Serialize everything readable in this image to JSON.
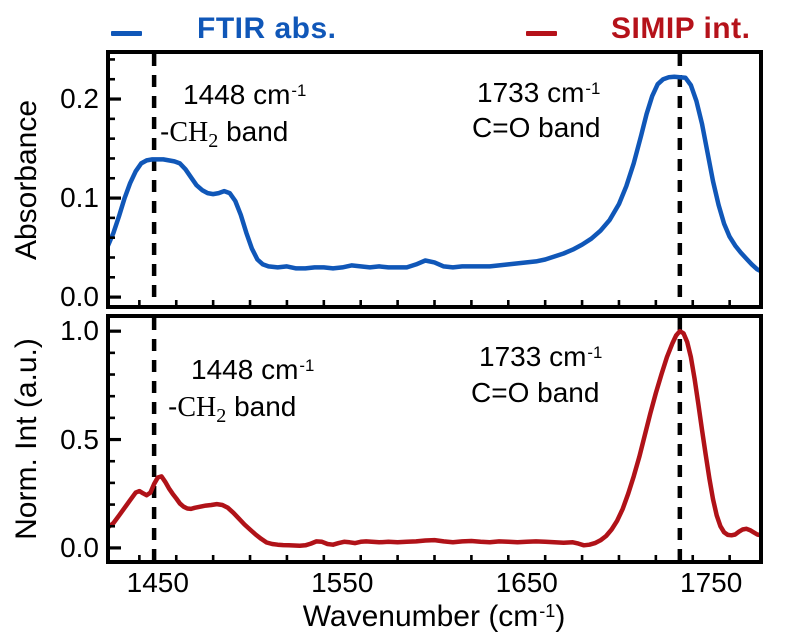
{
  "chart_data": {
    "type": "line",
    "title": "",
    "xlabel_parts": {
      "pre": "Wavenumber (cm",
      "sup": "-1",
      "post": ")"
    },
    "xlim": [
      1423,
      1777
    ],
    "x_major_ticks": [
      1450,
      1550,
      1650,
      1750
    ],
    "x_tick_labels": [
      "1450",
      "1550",
      "1650",
      "1750"
    ],
    "x_minor_step": 20,
    "vlines": [
      1448,
      1733
    ],
    "grid": false,
    "legend_position": "top",
    "panels": [
      {
        "series_name": "FTIR abs.",
        "ylabel": "Absorbance",
        "color": "#1057B8",
        "ylim": [
          -0.01,
          0.2475
        ],
        "y_major_ticks": [
          0,
          0.1,
          0.2
        ],
        "y_tick_labels": [
          "0.0",
          "0.1",
          "0.2"
        ],
        "y_minor_step": 0.02,
        "points": [
          [
            1423,
            0.052
          ],
          [
            1426,
            0.065
          ],
          [
            1429,
            0.082
          ],
          [
            1432,
            0.1
          ],
          [
            1435,
            0.115
          ],
          [
            1438,
            0.127
          ],
          [
            1441,
            0.135
          ],
          [
            1444,
            0.138
          ],
          [
            1447,
            0.139
          ],
          [
            1450,
            0.139
          ],
          [
            1453,
            0.139
          ],
          [
            1456,
            0.138
          ],
          [
            1459,
            0.137
          ],
          [
            1462,
            0.135
          ],
          [
            1465,
            0.129
          ],
          [
            1468,
            0.121
          ],
          [
            1471,
            0.113
          ],
          [
            1474,
            0.108
          ],
          [
            1477,
            0.105
          ],
          [
            1480,
            0.104
          ],
          [
            1483,
            0.105
          ],
          [
            1486,
            0.107
          ],
          [
            1489,
            0.105
          ],
          [
            1492,
            0.097
          ],
          [
            1495,
            0.083
          ],
          [
            1498,
            0.065
          ],
          [
            1501,
            0.049
          ],
          [
            1504,
            0.038
          ],
          [
            1507,
            0.033
          ],
          [
            1510,
            0.031
          ],
          [
            1515,
            0.03
          ],
          [
            1520,
            0.031
          ],
          [
            1525,
            0.029
          ],
          [
            1530,
            0.029
          ],
          [
            1535,
            0.03
          ],
          [
            1540,
            0.03
          ],
          [
            1545,
            0.029
          ],
          [
            1550,
            0.03
          ],
          [
            1555,
            0.032
          ],
          [
            1560,
            0.031
          ],
          [
            1565,
            0.03
          ],
          [
            1570,
            0.031
          ],
          [
            1575,
            0.03
          ],
          [
            1580,
            0.03
          ],
          [
            1585,
            0.03
          ],
          [
            1590,
            0.033
          ],
          [
            1595,
            0.037
          ],
          [
            1600,
            0.035
          ],
          [
            1605,
            0.031
          ],
          [
            1610,
            0.03
          ],
          [
            1615,
            0.031
          ],
          [
            1620,
            0.031
          ],
          [
            1625,
            0.031
          ],
          [
            1630,
            0.031
          ],
          [
            1635,
            0.032
          ],
          [
            1640,
            0.033
          ],
          [
            1645,
            0.034
          ],
          [
            1650,
            0.035
          ],
          [
            1655,
            0.036
          ],
          [
            1660,
            0.038
          ],
          [
            1665,
            0.041
          ],
          [
            1670,
            0.044
          ],
          [
            1675,
            0.048
          ],
          [
            1680,
            0.053
          ],
          [
            1685,
            0.059
          ],
          [
            1690,
            0.067
          ],
          [
            1695,
            0.078
          ],
          [
            1700,
            0.094
          ],
          [
            1704,
            0.112
          ],
          [
            1708,
            0.135
          ],
          [
            1712,
            0.163
          ],
          [
            1715,
            0.185
          ],
          [
            1718,
            0.203
          ],
          [
            1721,
            0.215
          ],
          [
            1724,
            0.22
          ],
          [
            1727,
            0.222
          ],
          [
            1730,
            0.2225
          ],
          [
            1733,
            0.222
          ],
          [
            1736,
            0.2215
          ],
          [
            1739,
            0.214
          ],
          [
            1742,
            0.198
          ],
          [
            1745,
            0.175
          ],
          [
            1748,
            0.146
          ],
          [
            1751,
            0.117
          ],
          [
            1754,
            0.093
          ],
          [
            1757,
            0.074
          ],
          [
            1760,
            0.061
          ],
          [
            1763,
            0.052
          ],
          [
            1766,
            0.045
          ],
          [
            1769,
            0.039
          ],
          [
            1772,
            0.033
          ],
          [
            1775,
            0.028
          ],
          [
            1777,
            0.026
          ]
        ]
      },
      {
        "series_name": "SIMIP int.",
        "ylabel": "Norm. Int (a.u.)",
        "color": "#B01218",
        "ylim": [
          -0.065,
          1.07
        ],
        "y_major_ticks": [
          0,
          0.5,
          1.0
        ],
        "y_tick_labels": [
          "0.0",
          "0.5",
          "1.0"
        ],
        "y_minor_step": 0.1,
        "points": [
          [
            1423,
            0.095
          ],
          [
            1426,
            0.115
          ],
          [
            1429,
            0.15
          ],
          [
            1432,
            0.185
          ],
          [
            1435,
            0.22
          ],
          [
            1438,
            0.255
          ],
          [
            1440,
            0.262
          ],
          [
            1442,
            0.252
          ],
          [
            1444,
            0.243
          ],
          [
            1446,
            0.255
          ],
          [
            1448,
            0.295
          ],
          [
            1450,
            0.325
          ],
          [
            1452,
            0.33
          ],
          [
            1454,
            0.305
          ],
          [
            1456,
            0.275
          ],
          [
            1458,
            0.25
          ],
          [
            1460,
            0.228
          ],
          [
            1462,
            0.205
          ],
          [
            1464,
            0.19
          ],
          [
            1466,
            0.182
          ],
          [
            1468,
            0.18
          ],
          [
            1470,
            0.185
          ],
          [
            1473,
            0.19
          ],
          [
            1476,
            0.195
          ],
          [
            1479,
            0.198
          ],
          [
            1482,
            0.202
          ],
          [
            1485,
            0.198
          ],
          [
            1488,
            0.185
          ],
          [
            1491,
            0.162
          ],
          [
            1494,
            0.135
          ],
          [
            1497,
            0.108
          ],
          [
            1500,
            0.085
          ],
          [
            1503,
            0.062
          ],
          [
            1506,
            0.042
          ],
          [
            1509,
            0.025
          ],
          [
            1512,
            0.018
          ],
          [
            1515,
            0.015
          ],
          [
            1518,
            0.013
          ],
          [
            1521,
            0.012
          ],
          [
            1524,
            0.011
          ],
          [
            1527,
            0.01
          ],
          [
            1530,
            0.012
          ],
          [
            1533,
            0.02
          ],
          [
            1536,
            0.03
          ],
          [
            1539,
            0.028
          ],
          [
            1542,
            0.018
          ],
          [
            1545,
            0.015
          ],
          [
            1548,
            0.022
          ],
          [
            1551,
            0.028
          ],
          [
            1554,
            0.026
          ],
          [
            1557,
            0.022
          ],
          [
            1560,
            0.028
          ],
          [
            1563,
            0.03
          ],
          [
            1566,
            0.028
          ],
          [
            1570,
            0.026
          ],
          [
            1575,
            0.028
          ],
          [
            1580,
            0.026
          ],
          [
            1585,
            0.028
          ],
          [
            1590,
            0.03
          ],
          [
            1595,
            0.034
          ],
          [
            1600,
            0.036
          ],
          [
            1605,
            0.03
          ],
          [
            1610,
            0.026
          ],
          [
            1615,
            0.03
          ],
          [
            1620,
            0.032
          ],
          [
            1625,
            0.028
          ],
          [
            1630,
            0.026
          ],
          [
            1635,
            0.03
          ],
          [
            1640,
            0.028
          ],
          [
            1645,
            0.026
          ],
          [
            1650,
            0.028
          ],
          [
            1655,
            0.03
          ],
          [
            1660,
            0.028
          ],
          [
            1665,
            0.026
          ],
          [
            1670,
            0.024
          ],
          [
            1675,
            0.026
          ],
          [
            1678,
            0.02
          ],
          [
            1681,
            0.012
          ],
          [
            1684,
            0.015
          ],
          [
            1687,
            0.022
          ],
          [
            1690,
            0.035
          ],
          [
            1693,
            0.055
          ],
          [
            1696,
            0.085
          ],
          [
            1699,
            0.125
          ],
          [
            1702,
            0.18
          ],
          [
            1705,
            0.25
          ],
          [
            1708,
            0.33
          ],
          [
            1711,
            0.42
          ],
          [
            1714,
            0.52
          ],
          [
            1717,
            0.62
          ],
          [
            1720,
            0.715
          ],
          [
            1723,
            0.8
          ],
          [
            1726,
            0.88
          ],
          [
            1729,
            0.945
          ],
          [
            1731,
            0.98
          ],
          [
            1733,
            1.0
          ],
          [
            1735,
            0.99
          ],
          [
            1737,
            0.95
          ],
          [
            1739,
            0.88
          ],
          [
            1741,
            0.78
          ],
          [
            1743,
            0.665
          ],
          [
            1745,
            0.545
          ],
          [
            1747,
            0.43
          ],
          [
            1749,
            0.32
          ],
          [
            1751,
            0.225
          ],
          [
            1753,
            0.15
          ],
          [
            1755,
            0.1
          ],
          [
            1757,
            0.072
          ],
          [
            1759,
            0.06
          ],
          [
            1761,
            0.058
          ],
          [
            1763,
            0.062
          ],
          [
            1765,
            0.075
          ],
          [
            1767,
            0.085
          ],
          [
            1769,
            0.088
          ],
          [
            1771,
            0.082
          ],
          [
            1773,
            0.072
          ],
          [
            1775,
            0.062
          ],
          [
            1777,
            0.058
          ]
        ]
      }
    ]
  },
  "legend": {
    "items": [
      {
        "label": "FTIR abs.",
        "color": "#1057B8"
      },
      {
        "label": "SIMIP int.",
        "color": "#B5121A"
      }
    ]
  },
  "annotations": {
    "ch2": {
      "line1_main": "1448 cm",
      "line1_sup": "-1",
      "line2_dash": "-",
      "line2_chem": "CH",
      "line2_sub": "2",
      "line2_post": " band"
    },
    "co": {
      "line1_main": "1733 cm",
      "line1_sup": "-1",
      "line2": "C=O band"
    }
  },
  "colors": {
    "axis": "#000000",
    "vline": "#000000",
    "background": "#ffffff"
  }
}
